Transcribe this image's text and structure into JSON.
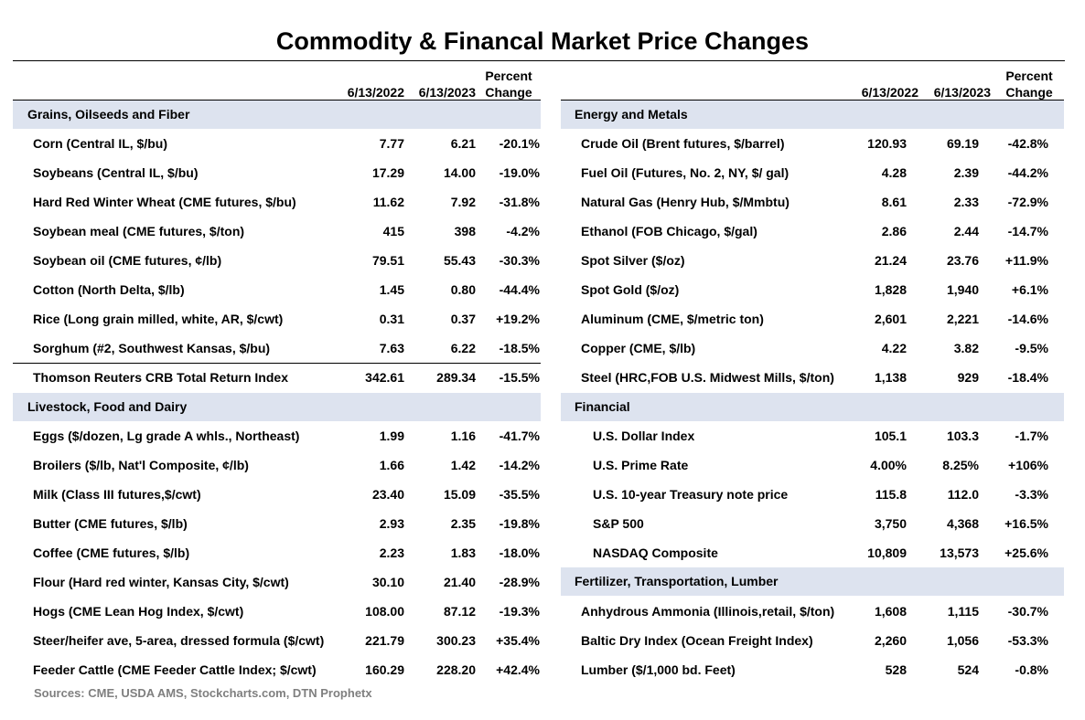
{
  "title": "Commodity & Financal Market Price Changes",
  "headers": {
    "date1": "6/13/2022",
    "date2": "6/13/2023",
    "pct_line1": "Percent",
    "pct_line2": "Change"
  },
  "colors": {
    "section_bg": "#dde3ef",
    "source_text": "#7f7f7f"
  },
  "left": {
    "sections": [
      {
        "title": "Grains, Oilseeds and Fiber",
        "rows": [
          {
            "name": "Corn (Central IL, $/bu)",
            "v1": "7.77",
            "v2": "6.21",
            "pct": "-20.1%"
          },
          {
            "name": "Soybeans (Central IL, $/bu)",
            "v1": "17.29",
            "v2": "14.00",
            "pct": "-19.0%"
          },
          {
            "name": "Hard Red Winter Wheat (CME futures, $/bu)",
            "v1": "11.62",
            "v2": "7.92",
            "pct": "-31.8%"
          },
          {
            "name": "Soybean meal (CME futures, $/ton)",
            "v1": "415",
            "v2": "398",
            "pct": "-4.2%"
          },
          {
            "name": "Soybean oil (CME futures, ¢/lb)",
            "v1": "79.51",
            "v2": "55.43",
            "pct": "-30.3%"
          },
          {
            "name": "Cotton (North Delta, $/lb)",
            "v1": "1.45",
            "v2": "0.80",
            "pct": "-44.4%"
          },
          {
            "name": "Rice (Long grain milled, white, AR, $/cwt)",
            "v1": "0.31",
            "v2": "0.37",
            "pct": "+19.2%"
          },
          {
            "name": "Sorghum (#2, Southwest Kansas, $/bu)",
            "v1": "7.63",
            "v2": "6.22",
            "pct": "-18.5%"
          },
          {
            "name": "Thomson Reuters CRB Total Return Index",
            "v1": "342.61",
            "v2": "289.34",
            "pct": "-15.5%"
          }
        ]
      },
      {
        "title": "Livestock, Food and Dairy",
        "rows": [
          {
            "name": "Eggs ($/dozen, Lg grade A whls., Northeast)",
            "v1": "1.99",
            "v2": "1.16",
            "pct": "-41.7%"
          },
          {
            "name": "Broilers ($/lb, Nat'l Composite, ¢/lb)",
            "v1": "1.66",
            "v2": "1.42",
            "pct": "-14.2%"
          },
          {
            "name": "Milk (Class III futures,$/cwt)",
            "v1": "23.40",
            "v2": "15.09",
            "pct": "-35.5%"
          },
          {
            "name": "Butter (CME futures, $/lb)",
            "v1": "2.93",
            "v2": "2.35",
            "pct": "-19.8%"
          },
          {
            "name": "Coffee (CME futures, $/lb)",
            "v1": "2.23",
            "v2": "1.83",
            "pct": "-18.0%"
          },
          {
            "name": "Flour (Hard red winter, Kansas City, $/cwt)",
            "v1": "30.10",
            "v2": "21.40",
            "pct": "-28.9%"
          },
          {
            "name": "Hogs (CME Lean Hog Index, $/cwt)",
            "v1": "108.00",
            "v2": "87.12",
            "pct": "-19.3%"
          },
          {
            "name": "Steer/heifer ave, 5-area, dressed formula ($/cwt)",
            "v1": "221.79",
            "v2": "300.23",
            "pct": "+35.4%"
          },
          {
            "name": "Feeder Cattle (CME Feeder Cattle Index; $/cwt)",
            "v1": "160.29",
            "v2": "228.20",
            "pct": "+42.4%"
          }
        ]
      }
    ]
  },
  "right": {
    "sections": [
      {
        "title": "Energy and Metals",
        "rows": [
          {
            "name": "Crude Oil (Brent futures, $/barrel)",
            "v1": "120.93",
            "v2": "69.19",
            "pct": "-42.8%"
          },
          {
            "name": "Fuel Oil (Futures, No. 2, NY, $/ gal)",
            "v1": "4.28",
            "v2": "2.39",
            "pct": "-44.2%"
          },
          {
            "name": "Natural Gas (Henry Hub, $/Mmbtu)",
            "v1": "8.61",
            "v2": "2.33",
            "pct": "-72.9%"
          },
          {
            "name": "Ethanol (FOB Chicago, $/gal)",
            "v1": "2.86",
            "v2": "2.44",
            "pct": "-14.7%"
          },
          {
            "name": "Spot Silver ($/oz)",
            "v1": "21.24",
            "v2": "23.76",
            "pct": "+11.9%"
          },
          {
            "name": "Spot Gold ($/oz)",
            "v1": "1,828",
            "v2": "1,940",
            "pct": "+6.1%"
          },
          {
            "name": "Aluminum (CME, $/metric ton)",
            "v1": "2,601",
            "v2": "2,221",
            "pct": "-14.6%"
          },
          {
            "name": "Copper (CME, $/lb)",
            "v1": "4.22",
            "v2": "3.82",
            "pct": "-9.5%"
          },
          {
            "name": "Steel (HRC,FOB U.S. Midwest Mills, $/ton)",
            "v1": "1,138",
            "v2": "929",
            "pct": "-18.4%"
          }
        ]
      },
      {
        "title": "Financial",
        "rows": [
          {
            "name": "U.S. Dollar Index",
            "v1": "105.1",
            "v2": "103.3",
            "pct": "-1.7%"
          },
          {
            "name": "U.S. Prime Rate",
            "v1": "4.00%",
            "v2": "8.25%",
            "pct": "+106%"
          },
          {
            "name": "U.S. 10-year Treasury note price",
            "v1": "115.8",
            "v2": "112.0",
            "pct": "-3.3%"
          },
          {
            "name": "S&P 500",
            "v1": "3,750",
            "v2": "4,368",
            "pct": "+16.5%"
          },
          {
            "name": "NASDAQ Composite",
            "v1": "10,809",
            "v2": "13,573",
            "pct": "+25.6%"
          }
        ]
      },
      {
        "title": "Fertilizer, Transportation, Lumber",
        "rows": [
          {
            "name": "Anhydrous Ammonia (Illinois,retail, $/ton)",
            "v1": "1,608",
            "v2": "1,115",
            "pct": "-30.7%"
          },
          {
            "name": "Baltic Dry Index (Ocean Freight Index)",
            "v1": "2,260",
            "v2": "1,056",
            "pct": "-53.3%"
          },
          {
            "name": "Lumber ($/1,000 bd. Feet)",
            "v1": "528",
            "v2": "524",
            "pct": "-0.8%"
          }
        ]
      }
    ]
  },
  "source": "Sources: CME, USDA AMS, Stockcharts.com, DTN Prophetx"
}
